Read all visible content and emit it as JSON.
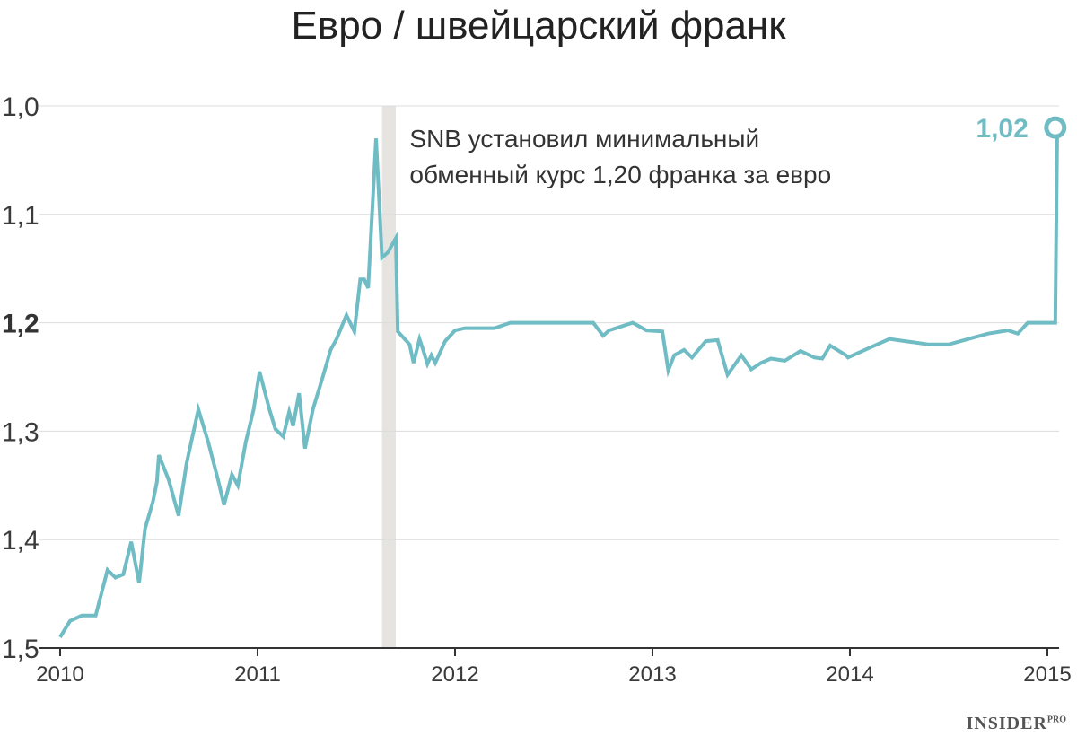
{
  "header": {
    "title": "Евро / швейцарский франк"
  },
  "branding": {
    "name": "INSIDER",
    "suffix": "PRO"
  },
  "colors": {
    "line": "#6fbcc4",
    "grid": "#dcdcdc",
    "band": "#e6e4e1",
    "axis": "#333333",
    "text": "#3a3a3a"
  },
  "chart_data": {
    "type": "line",
    "title": "Евро / швейцарский франк",
    "xlabel": "",
    "ylabel": "",
    "y_axis_inverted": true,
    "ylim": [
      1.0,
      1.5
    ],
    "xlim": [
      2010.0,
      2015.05
    ],
    "grid": true,
    "y_ticks": [
      "1,0",
      "1,1",
      "1,2",
      "1,3",
      "1,4",
      "1,5"
    ],
    "y_tick_values": [
      1.0,
      1.1,
      1.2,
      1.3,
      1.4,
      1.5
    ],
    "y_tick_emphasis": "1,2",
    "x_ticks": [
      "2010",
      "2011",
      "2012",
      "2013",
      "2014",
      "2015"
    ],
    "x_tick_values": [
      2010,
      2011,
      2012,
      2013,
      2014,
      2015
    ],
    "highlight_band": {
      "x_start": 2011.63,
      "x_end": 2011.7
    },
    "annotation": {
      "lines": [
        "SNB установил минимальный",
        "обменный курс 1,20 франка за евро"
      ],
      "x": 2011.77,
      "y": 1.03
    },
    "end_label": {
      "text": "1,02",
      "x": 2015.04,
      "y": 1.02
    },
    "series": [
      {
        "x": [
          2010.0,
          2010.05,
          2010.11,
          2010.18,
          2010.24,
          2010.28,
          2010.32,
          2010.36,
          2010.4,
          2010.43,
          2010.47,
          2010.49,
          2010.5,
          2010.55,
          2010.6,
          2010.64,
          2010.7,
          2010.75,
          2010.8,
          2010.83,
          2010.87,
          2010.9,
          2010.94,
          2010.98,
          2011.01,
          2011.06,
          2011.09,
          2011.13,
          2011.16,
          2011.18,
          2011.21,
          2011.24,
          2011.28,
          2011.33,
          2011.37,
          2011.4,
          2011.45,
          2011.49,
          2011.52,
          2011.54,
          2011.56,
          2011.6,
          2011.63,
          2011.66,
          2011.7,
          2011.71,
          2011.74,
          2011.77,
          2011.79,
          2011.82,
          2011.84,
          2011.86,
          2011.88,
          2011.9,
          2011.95,
          2012.0,
          2012.05,
          2012.1,
          2012.2,
          2012.28,
          2012.5,
          2012.7,
          2012.75,
          2012.78,
          2012.9,
          2012.97,
          2013.05,
          2013.08,
          2013.11,
          2013.16,
          2013.2,
          2013.27,
          2013.33,
          2013.38,
          2013.45,
          2013.5,
          2013.55,
          2013.6,
          2013.67,
          2013.75,
          2013.82,
          2013.86,
          2013.9,
          2013.98,
          2013.99,
          2014.1,
          2014.2,
          2014.4,
          2014.5,
          2014.6,
          2014.7,
          2014.8,
          2014.85,
          2014.9,
          2015.0,
          2015.04,
          2015.05
        ],
        "y": [
          1.49,
          1.475,
          1.47,
          1.47,
          1.428,
          1.435,
          1.432,
          1.402,
          1.44,
          1.39,
          1.365,
          1.347,
          1.322,
          1.345,
          1.378,
          1.33,
          1.28,
          1.31,
          1.345,
          1.368,
          1.34,
          1.35,
          1.31,
          1.28,
          1.245,
          1.28,
          1.298,
          1.305,
          1.282,
          1.295,
          1.265,
          1.316,
          1.28,
          1.25,
          1.225,
          1.215,
          1.193,
          1.208,
          1.16,
          1.16,
          1.168,
          1.03,
          1.14,
          1.135,
          1.122,
          1.208,
          1.214,
          1.22,
          1.237,
          1.215,
          1.226,
          1.238,
          1.23,
          1.237,
          1.217,
          1.207,
          1.205,
          1.205,
          1.205,
          1.2,
          1.2,
          1.2,
          1.212,
          1.207,
          1.2,
          1.207,
          1.208,
          1.244,
          1.23,
          1.225,
          1.232,
          1.217,
          1.216,
          1.248,
          1.23,
          1.243,
          1.237,
          1.233,
          1.235,
          1.226,
          1.232,
          1.233,
          1.221,
          1.23,
          1.232,
          1.223,
          1.215,
          1.22,
          1.22,
          1.215,
          1.21,
          1.207,
          1.21,
          1.2,
          1.2,
          1.2,
          1.02
        ]
      }
    ]
  }
}
